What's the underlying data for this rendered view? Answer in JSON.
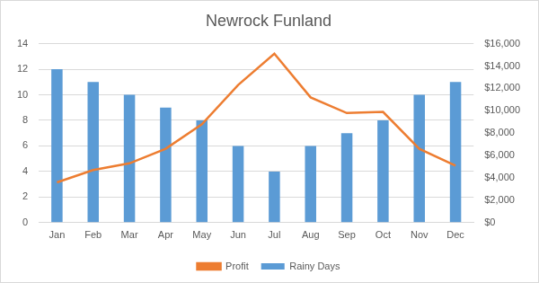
{
  "chart_data": {
    "type": "bar",
    "title": "Newrock Funland",
    "categories": [
      "Jan",
      "Feb",
      "Mar",
      "Apr",
      "May",
      "Jun",
      "Jul",
      "Aug",
      "Sep",
      "Oct",
      "Nov",
      "Dec"
    ],
    "series": [
      {
        "name": "Rainy Days",
        "type": "bar",
        "color": "#5b9bd5",
        "values": [
          12,
          11,
          10,
          9,
          8,
          6,
          4,
          6,
          7,
          8,
          10,
          11
        ]
      },
      {
        "name": "Profit",
        "type": "line",
        "color": "#ed7d31",
        "axis": "y2",
        "values": [
          3600,
          4700,
          5300,
          6600,
          8800,
          12300,
          15100,
          11200,
          9800,
          9900,
          6600,
          5100
        ]
      }
    ],
    "ylim": [
      0,
      14
    ],
    "yticks": [
      0,
      2,
      4,
      6,
      8,
      10,
      12,
      14
    ],
    "y2lim": [
      0,
      16000
    ],
    "y2ticks": [
      {
        "value": 0,
        "label": "$0"
      },
      {
        "value": 2000,
        "label": "$2,000"
      },
      {
        "value": 4000,
        "label": "$4,000"
      },
      {
        "value": 6000,
        "label": "$6,000"
      },
      {
        "value": 8000,
        "label": "$8,000"
      },
      {
        "value": 10000,
        "label": "$10,000"
      },
      {
        "value": 12000,
        "label": "$12,000"
      },
      {
        "value": 14000,
        "label": "$14,000"
      },
      {
        "value": 16000,
        "label": "$16,000"
      }
    ],
    "grid": true,
    "legend": "bottom"
  }
}
